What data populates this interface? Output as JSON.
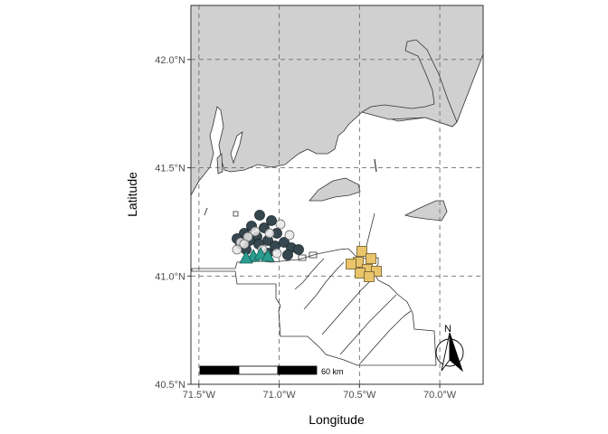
{
  "map": {
    "xlabel": "Longitude",
    "ylabel": "Latitude",
    "x_ticks": [
      "71.5°W",
      "71.0°W",
      "70.5°W",
      "70.0°W"
    ],
    "y_ticks": [
      "42.0°N",
      "41.5°N",
      "41.0°N",
      "40.5°N"
    ],
    "x_tick_values": [
      -71.5,
      -71.0,
      -70.5,
      -70.0
    ],
    "y_tick_values": [
      42.0,
      41.5,
      41.0,
      40.5
    ],
    "xlim": [
      -71.55,
      -69.73
    ],
    "ylim": [
      40.5,
      42.25
    ],
    "grid": "dashed",
    "scale_bar_label": "60 km",
    "north_label": "N",
    "colors": {
      "land": "#d0d0d0",
      "circle_dark": "#36474f",
      "circle_light": "#e8e8e8",
      "triangle": "#2a9d8f",
      "square": "#e9c46a"
    }
  }
}
